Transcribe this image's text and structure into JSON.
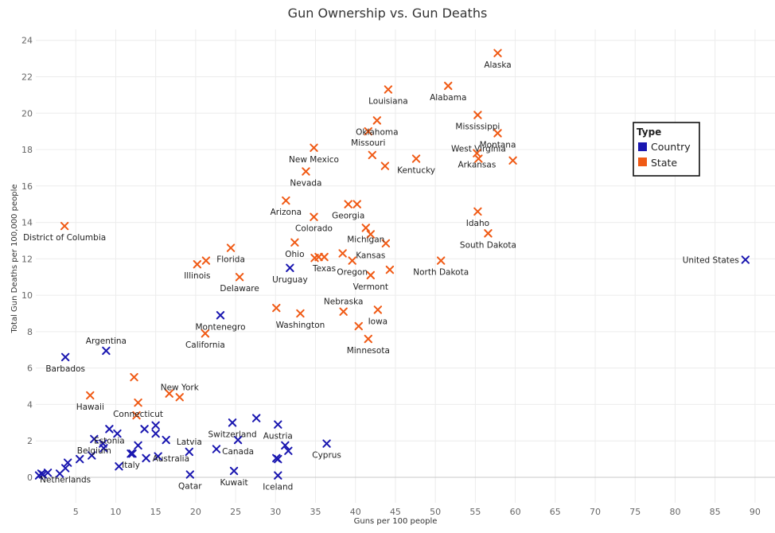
{
  "chart_data": {
    "type": "scatter",
    "title": "Gun Ownership vs. Gun Deaths",
    "xlabel": "Guns per 100 people",
    "ylabel": "Total Gun Deaths per 100,000 people",
    "xlim": [
      0,
      92.5
    ],
    "ylim": [
      -1.4,
      24.6
    ],
    "xticks": [
      5,
      10,
      15,
      20,
      25,
      30,
      35,
      40,
      45,
      50,
      55,
      60,
      65,
      70,
      75,
      80,
      85,
      90
    ],
    "yticks": [
      0,
      2,
      4,
      6,
      8,
      10,
      12,
      14,
      16,
      18,
      20,
      22,
      24
    ],
    "grid": true,
    "legend": {
      "title": "Type",
      "position": "right",
      "entries": [
        {
          "name": "Country",
          "color": "#1a17b0"
        },
        {
          "name": "State",
          "color": "#f05a15"
        }
      ]
    },
    "series": [
      {
        "name": "Country",
        "color": "#1a17b0",
        "points": [
          {
            "x": 0.4,
            "y": 0.1
          },
          {
            "x": 0.7,
            "y": 0.2
          },
          {
            "x": 0.9,
            "y": 0.15
          },
          {
            "x": 1.5,
            "y": 0.25
          },
          {
            "x": 3.0,
            "y": 0.2
          },
          {
            "x": 3.7,
            "y": 0.5,
            "label": "Netherlands"
          },
          {
            "x": 4.0,
            "y": 0.8
          },
          {
            "x": 5.5,
            "y": 1.0
          },
          {
            "x": 7.0,
            "y": 1.2
          },
          {
            "x": 7.3,
            "y": 2.1,
            "label": "Belgium"
          },
          {
            "x": 8.5,
            "y": 1.6
          },
          {
            "x": 8.4,
            "y": 1.85
          },
          {
            "x": 9.2,
            "y": 2.65,
            "label": "Estonia"
          },
          {
            "x": 10.2,
            "y": 2.4
          },
          {
            "x": 10.4,
            "y": 0.6
          },
          {
            "x": 11.9,
            "y": 1.3,
            "label": "Italy"
          },
          {
            "x": 12.1,
            "y": 1.3
          },
          {
            "x": 12.8,
            "y": 1.75
          },
          {
            "x": 13.6,
            "y": 2.65
          },
          {
            "x": 13.8,
            "y": 1.05,
            "label": "Australia"
          },
          {
            "x": 15.0,
            "y": 2.85
          },
          {
            "x": 15.0,
            "y": 2.4
          },
          {
            "x": 15.3,
            "y": 1.15
          },
          {
            "x": 16.3,
            "y": 2.05
          },
          {
            "x": 19.2,
            "y": 1.4,
            "label": "Latvia"
          },
          {
            "x": 19.3,
            "y": 0.15,
            "label": "Qatar"
          },
          {
            "x": 22.6,
            "y": 1.55
          },
          {
            "x": 24.6,
            "y": 3.0,
            "label": "Switzerland"
          },
          {
            "x": 24.8,
            "y": 0.35,
            "label": "Kuwait"
          },
          {
            "x": 25.3,
            "y": 2.05,
            "label": "Canada"
          },
          {
            "x": 27.6,
            "y": 3.25
          },
          {
            "x": 30.3,
            "y": 2.9,
            "label": "Austria"
          },
          {
            "x": 30.1,
            "y": 1.05
          },
          {
            "x": 30.3,
            "y": 1.0
          },
          {
            "x": 30.3,
            "y": 0.1,
            "label": "Iceland"
          },
          {
            "x": 31.2,
            "y": 1.75
          },
          {
            "x": 31.6,
            "y": 1.45
          },
          {
            "x": 36.4,
            "y": 1.85,
            "label": "Cyprus"
          },
          {
            "x": 3.7,
            "y": 6.6,
            "label": "Barbados"
          },
          {
            "x": 8.8,
            "y": 6.95,
            "label": "Argentina"
          },
          {
            "x": 23.1,
            "y": 8.9,
            "label": "Montenegro"
          },
          {
            "x": 31.8,
            "y": 11.5,
            "label": "Uruguay"
          },
          {
            "x": 88.8,
            "y": 11.95,
            "label": "United States"
          }
        ]
      },
      {
        "name": "State",
        "color": "#f05a15",
        "points": [
          {
            "x": 3.6,
            "y": 13.8,
            "label": "District of Columbia"
          },
          {
            "x": 6.8,
            "y": 4.5,
            "label": "Hawaii"
          },
          {
            "x": 12.3,
            "y": 5.5
          },
          {
            "x": 12.6,
            "y": 3.4
          },
          {
            "x": 12.8,
            "y": 4.1,
            "label": "Connecticut"
          },
          {
            "x": 16.7,
            "y": 4.6
          },
          {
            "x": 18.0,
            "y": 4.4,
            "label": "New York"
          },
          {
            "x": 20.2,
            "y": 11.7,
            "label": "Illinois"
          },
          {
            "x": 21.3,
            "y": 11.9
          },
          {
            "x": 21.2,
            "y": 7.9,
            "label": "California"
          },
          {
            "x": 24.4,
            "y": 12.6,
            "label": "Florida"
          },
          {
            "x": 25.5,
            "y": 11.0,
            "label": "Delaware"
          },
          {
            "x": 30.1,
            "y": 9.3
          },
          {
            "x": 31.3,
            "y": 15.2,
            "label": "Arizona"
          },
          {
            "x": 32.4,
            "y": 12.9,
            "label": "Ohio"
          },
          {
            "x": 33.1,
            "y": 9.0,
            "label": "Washington"
          },
          {
            "x": 33.8,
            "y": 16.8,
            "label": "Nevada"
          },
          {
            "x": 34.8,
            "y": 18.1,
            "label": "New Mexico"
          },
          {
            "x": 34.8,
            "y": 14.3,
            "label": "Colorado"
          },
          {
            "x": 34.9,
            "y": 12.05
          },
          {
            "x": 35.4,
            "y": 12.1
          },
          {
            "x": 36.1,
            "y": 12.1,
            "label": "Texas"
          },
          {
            "x": 38.4,
            "y": 12.3
          },
          {
            "x": 38.5,
            "y": 9.1,
            "label": "Nebraska"
          },
          {
            "x": 39.1,
            "y": 15.0,
            "label": "Georgia"
          },
          {
            "x": 40.2,
            "y": 15.0
          },
          {
            "x": 39.6,
            "y": 11.9,
            "label": "Oregon"
          },
          {
            "x": 40.4,
            "y": 8.3
          },
          {
            "x": 41.3,
            "y": 13.7,
            "label": "Michigan"
          },
          {
            "x": 41.9,
            "y": 13.35,
            "label": "Kansas"
          },
          {
            "x": 41.6,
            "y": 7.6,
            "label": "Minnesota"
          },
          {
            "x": 41.9,
            "y": 11.1,
            "label": "Vermont"
          },
          {
            "x": 41.6,
            "y": 19.0,
            "label": "Missouri"
          },
          {
            "x": 42.1,
            "y": 17.7
          },
          {
            "x": 42.7,
            "y": 19.6,
            "label": "Oklahoma"
          },
          {
            "x": 42.8,
            "y": 9.2,
            "label": "Iowa"
          },
          {
            "x": 43.7,
            "y": 17.1
          },
          {
            "x": 43.8,
            "y": 12.85
          },
          {
            "x": 44.1,
            "y": 21.3,
            "label": "Louisiana"
          },
          {
            "x": 44.3,
            "y": 11.4
          },
          {
            "x": 47.6,
            "y": 17.5,
            "label": "Kentucky"
          },
          {
            "x": 50.7,
            "y": 11.9,
            "label": "North Dakota"
          },
          {
            "x": 51.6,
            "y": 21.5,
            "label": "Alabama"
          },
          {
            "x": 55.2,
            "y": 17.8,
            "label": "Arkansas"
          },
          {
            "x": 55.3,
            "y": 19.9,
            "label": "Mississippi"
          },
          {
            "x": 55.4,
            "y": 17.5,
            "label": "West Virginia"
          },
          {
            "x": 55.3,
            "y": 14.6,
            "label": "Idaho"
          },
          {
            "x": 56.6,
            "y": 13.4,
            "label": "South Dakota"
          },
          {
            "x": 57.8,
            "y": 18.9,
            "label": "Montana"
          },
          {
            "x": 57.8,
            "y": 23.3,
            "label": "Alaska"
          },
          {
            "x": 59.7,
            "y": 17.4
          }
        ]
      }
    ]
  }
}
